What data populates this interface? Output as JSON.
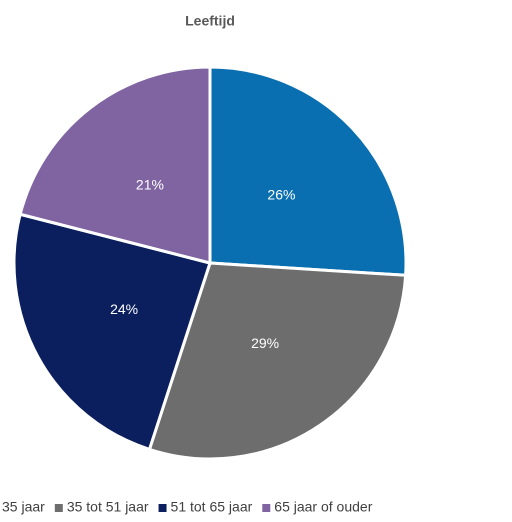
{
  "chart_data": {
    "type": "pie",
    "title": "Leeftijd",
    "categories": [
      "35 jaar",
      "35 tot 51 jaar",
      "51 tot 65 jaar",
      "65 jaar of ouder"
    ],
    "values": [
      26,
      29,
      24,
      21
    ],
    "value_labels": [
      "26%",
      "29%",
      "24%",
      "21%"
    ],
    "colors": [
      "#0a6fb0",
      "#6d6d6d",
      "#0b1f5e",
      "#8064a2"
    ],
    "legend": "bottom"
  }
}
